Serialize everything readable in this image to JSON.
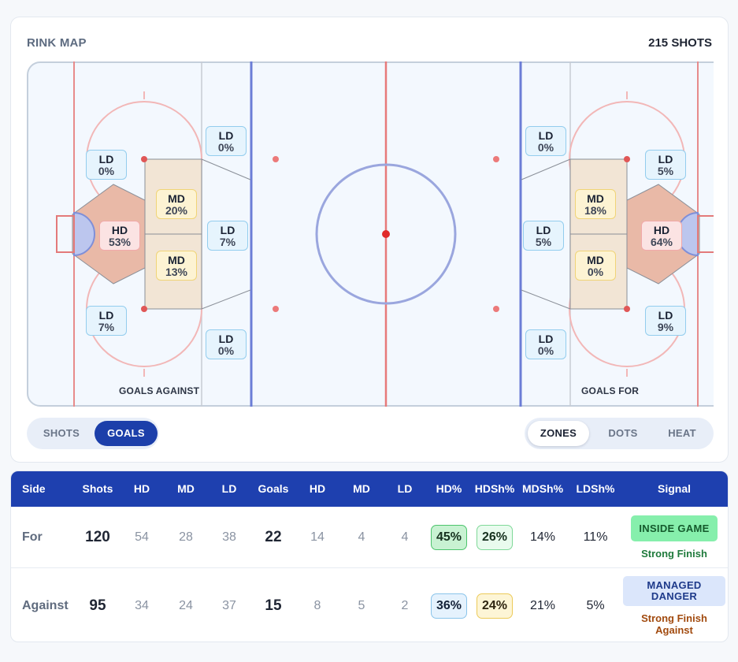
{
  "rink_map": {
    "title": "RINK MAP",
    "shots_count": "215 SHOTS",
    "labels": {
      "against": "GOALS AGAINST",
      "for": "GOALS FOR"
    },
    "zones_against": [
      {
        "id": "ld-top-point",
        "type": "LD",
        "value": "0%"
      },
      {
        "id": "ld-top-circle",
        "type": "LD",
        "value": "0%"
      },
      {
        "id": "md-top",
        "type": "MD",
        "value": "20%"
      },
      {
        "id": "hd-slot",
        "type": "HD",
        "value": "53%"
      },
      {
        "id": "ld-mid-point",
        "type": "LD",
        "value": "7%"
      },
      {
        "id": "md-bottom",
        "type": "MD",
        "value": "13%"
      },
      {
        "id": "ld-bottom-circle",
        "type": "LD",
        "value": "7%"
      },
      {
        "id": "ld-bottom-point",
        "type": "LD",
        "value": "0%"
      }
    ],
    "zones_for": [
      {
        "id": "ld-top-point",
        "type": "LD",
        "value": "0%"
      },
      {
        "id": "ld-top-circle",
        "type": "LD",
        "value": "5%"
      },
      {
        "id": "md-top",
        "type": "MD",
        "value": "18%"
      },
      {
        "id": "hd-slot",
        "type": "HD",
        "value": "64%"
      },
      {
        "id": "ld-mid-point",
        "type": "LD",
        "value": "5%"
      },
      {
        "id": "md-bottom",
        "type": "MD",
        "value": "0%"
      },
      {
        "id": "ld-bottom-circle",
        "type": "LD",
        "value": "9%"
      },
      {
        "id": "ld-bottom-point",
        "type": "LD",
        "value": "0%"
      }
    ]
  },
  "toggles": {
    "metric": {
      "options": [
        "SHOTS",
        "GOALS"
      ],
      "selected": "GOALS"
    },
    "view": {
      "options": [
        "ZONES",
        "DOTS",
        "HEAT"
      ],
      "selected": "ZONES"
    }
  },
  "table": {
    "headers": [
      "Side",
      "Shots",
      "HD",
      "MD",
      "LD",
      "Goals",
      "HD",
      "MD",
      "LD",
      "HD%",
      "HDSh%",
      "MDSh%",
      "LDSh%",
      "Signal"
    ],
    "rows": [
      {
        "side": "For",
        "shots": "120",
        "hd": "54",
        "md": "28",
        "ld": "38",
        "goals": "22",
        "ghd": "14",
        "gmd": "4",
        "gld": "4",
        "hd_pct": "45%",
        "hdsh_pct": "26%",
        "mdsh_pct": "14%",
        "ldsh_pct": "11%",
        "signal": "INSIDE GAME",
        "signal_sub": "Strong Finish"
      },
      {
        "side": "Against",
        "shots": "95",
        "hd": "34",
        "md": "24",
        "ld": "37",
        "goals": "15",
        "ghd": "8",
        "gmd": "5",
        "gld": "2",
        "hd_pct": "36%",
        "hdsh_pct": "24%",
        "mdsh_pct": "21%",
        "ldsh_pct": "5%",
        "signal": "MANAGED DANGER",
        "signal_sub": "Strong Finish Against"
      }
    ]
  },
  "colors": {
    "accent": "#1e40af",
    "red_line": "#e06b6b",
    "blue_line": "#5b6fd1",
    "hd_fill": "#e8b4a4",
    "md_fill": "#f1e3d0"
  }
}
